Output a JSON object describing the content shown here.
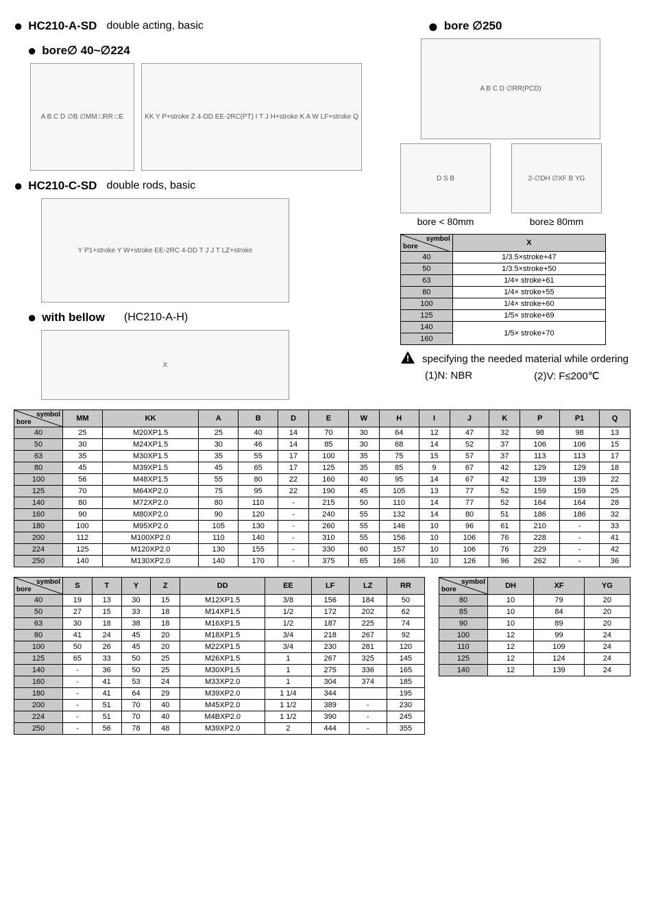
{
  "titles": {
    "t1": "HC210-A-SD",
    "t1sub": "double acting, basic",
    "t1a": "bore∅ 40~∅224",
    "t2": "HC210-C-SD",
    "t2sub": "double rods, basic",
    "t3": "with bellow",
    "t3paren": "(HC210-A-H)",
    "right1": "bore ∅250",
    "rightcap1": "bore < 80mm",
    "rightcap2": "bore≥ 80mm"
  },
  "diagram_labels": {
    "d1_end": "A B C D  ∅B  ∅MM  □RR  □E",
    "d1_side": "KK  Y  P+stroke  Z  4-DD  EE-2RC(PT)  I T J  H+stroke  K  A  W  LF+stroke  Q",
    "d2": "Y  P1+stroke  Y  W+stroke  EE-2RC  4-DD  T J  J T  LZ+stroke",
    "d3": "X",
    "dr_flange": "A B C D  ∅RR(PCD)",
    "dr_block_a": "D  S  B",
    "dr_block_b": "2-∅DH  ∅XF  B  YG"
  },
  "small_table": {
    "header_col": "X",
    "label_symbol": "symbol",
    "label_bore": "bore",
    "rows": [
      {
        "b": "40",
        "x": "1/3.5×stroke+47"
      },
      {
        "b": "50",
        "x": "1/3.5×stroke+50"
      },
      {
        "b": "63",
        "x": "1/4× stroke+61"
      },
      {
        "b": "80",
        "x": "1/4× stroke+55"
      },
      {
        "b": "100",
        "x": "1/4× stroke+60"
      },
      {
        "b": "125",
        "x": "1/5× stroke+69"
      },
      {
        "b": "140",
        "x": "1/5× stroke+70"
      },
      {
        "b": "160",
        "x": ""
      }
    ]
  },
  "note": {
    "line1": "specifying the needed material while ordering",
    "a": "(1)N: NBR",
    "b": "(2)V: F≤200℃"
  },
  "main_table": {
    "cols": [
      "MM",
      "KK",
      "A",
      "B",
      "D",
      "E",
      "W",
      "H",
      "I",
      "J",
      "K",
      "P",
      "P1",
      "Q"
    ],
    "rows": [
      [
        "40",
        "25",
        "M20XP1.5",
        "25",
        "40",
        "14",
        "70",
        "30",
        "64",
        "12",
        "47",
        "32",
        "98",
        "98",
        "13"
      ],
      [
        "50",
        "30",
        "M24XP1.5",
        "30",
        "46",
        "14",
        "85",
        "30",
        "68",
        "14",
        "52",
        "37",
        "106",
        "106",
        "15"
      ],
      [
        "63",
        "35",
        "M30XP1.5",
        "35",
        "55",
        "17",
        "100",
        "35",
        "75",
        "15",
        "57",
        "37",
        "113",
        "113",
        "17"
      ],
      [
        "80",
        "45",
        "M39XP1.5",
        "45",
        "65",
        "17",
        "125",
        "35",
        "85",
        "9",
        "67",
        "42",
        "129",
        "129",
        "18"
      ],
      [
        "100",
        "56",
        "M48XP1.5",
        "55",
        "80",
        "22",
        "160",
        "40",
        "95",
        "14",
        "67",
        "42",
        "139",
        "139",
        "22"
      ],
      [
        "125",
        "70",
        "M64XP2.0",
        "75",
        "95",
        "22",
        "190",
        "45",
        "105",
        "13",
        "77",
        "52",
        "159",
        "159",
        "25"
      ],
      [
        "140",
        "80",
        "M72XP2.0",
        "80",
        "110",
        "-",
        "215",
        "50",
        "110",
        "14",
        "77",
        "52",
        "164",
        "164",
        "28"
      ],
      [
        "160",
        "90",
        "M80XP2.0",
        "90",
        "120",
        "-",
        "240",
        "55",
        "132",
        "14",
        "80",
        "51",
        "186",
        "186",
        "32"
      ],
      [
        "180",
        "100",
        "M95XP2.0",
        "105",
        "130",
        "-",
        "260",
        "55",
        "146",
        "10",
        "96",
        "61",
        "210",
        "-",
        "33"
      ],
      [
        "200",
        "112",
        "M100XP2.0",
        "110",
        "140",
        "-",
        "310",
        "55",
        "156",
        "10",
        "106",
        "76",
        "228",
        "-",
        "41"
      ],
      [
        "224",
        "125",
        "M120XP2.0",
        "130",
        "155",
        "-",
        "330",
        "60",
        "157",
        "10",
        "106",
        "76",
        "229",
        "-",
        "42"
      ],
      [
        "250",
        "140",
        "M130XP2.0",
        "140",
        "170",
        "-",
        "375",
        "65",
        "166",
        "10",
        "126",
        "96",
        "262",
        "-",
        "36"
      ]
    ]
  },
  "table2": {
    "cols": [
      "S",
      "T",
      "Y",
      "Z",
      "DD",
      "EE",
      "LF",
      "LZ",
      "RR"
    ],
    "rows": [
      [
        "40",
        "19",
        "13",
        "30",
        "15",
        "M12XP1.5",
        "3/8",
        "156",
        "184",
        "50"
      ],
      [
        "50",
        "27",
        "15",
        "33",
        "18",
        "M14XP1.5",
        "1/2",
        "172",
        "202",
        "62"
      ],
      [
        "63",
        "30",
        "18",
        "38",
        "18",
        "M16XP1.5",
        "1/2",
        "187",
        "225",
        "74"
      ],
      [
        "80",
        "41",
        "24",
        "45",
        "20",
        "M18XP1.5",
        "3/4",
        "218",
        "267",
        "92"
      ],
      [
        "100",
        "50",
        "26",
        "45",
        "20",
        "M22XP1.5",
        "3/4",
        "230",
        "281",
        "120"
      ],
      [
        "125",
        "65",
        "33",
        "50",
        "25",
        "M26XP1.5",
        "1",
        "267",
        "325",
        "145"
      ],
      [
        "140",
        "-",
        "36",
        "50",
        "25",
        "M30XP1.5",
        "1",
        "275",
        "336",
        "165"
      ],
      [
        "160",
        "-",
        "41",
        "53",
        "24",
        "M33XP2.0",
        "1",
        "304",
        "374",
        "185"
      ],
      [
        "180",
        "-",
        "41",
        "64",
        "29",
        "M39XP2.0",
        "1 1/4",
        "344",
        "",
        "195"
      ],
      [
        "200",
        "-",
        "51",
        "70",
        "40",
        "M45XP2.0",
        "1 1/2",
        "389",
        "-",
        "230"
      ],
      [
        "224",
        "-",
        "51",
        "70",
        "40",
        "M4BXP2.0",
        "1 1/2",
        "390",
        "-",
        "245"
      ],
      [
        "250",
        "-",
        "56",
        "78",
        "48",
        "M39XP2.0",
        "2",
        "444",
        "-",
        "355"
      ]
    ]
  },
  "table3": {
    "cols": [
      "DH",
      "XF",
      "YG"
    ],
    "rows": [
      [
        "80",
        "10",
        "79",
        "20"
      ],
      [
        "85",
        "10",
        "84",
        "20"
      ],
      [
        "90",
        "10",
        "89",
        "20"
      ],
      [
        "100",
        "12",
        "99",
        "24"
      ],
      [
        "110",
        "12",
        "109",
        "24"
      ],
      [
        "125",
        "12",
        "124",
        "24"
      ],
      [
        "140",
        "12",
        "139",
        "24"
      ]
    ]
  },
  "colors": {
    "header_bg": "#c9c9c9",
    "border": "#000000"
  }
}
